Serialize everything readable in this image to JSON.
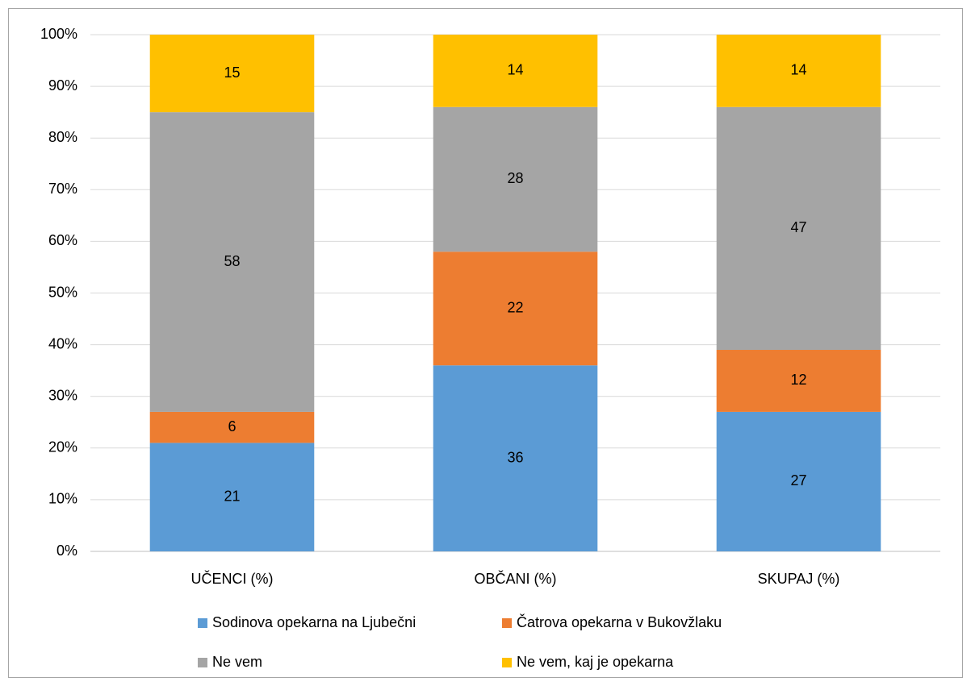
{
  "chart_data": {
    "type": "stacked_bar",
    "categories": [
      "UČENCI (%)",
      "OBČANI (%)",
      "SKUPAJ (%)"
    ],
    "series": [
      {
        "name": "Sodinova opekarna na Ljubečni",
        "color": "#5b9bd5",
        "values": [
          21,
          36,
          27
        ]
      },
      {
        "name": "Čatrova opekarna v Bukovžlaku",
        "color": "#ed7d31",
        "values": [
          6,
          22,
          12
        ]
      },
      {
        "name": "Ne vem",
        "color": "#a5a5a5",
        "values": [
          58,
          28,
          47
        ]
      },
      {
        "name": "Ne vem, kaj je opekarna",
        "color": "#ffc000",
        "values": [
          15,
          14,
          14
        ]
      }
    ],
    "ylim": [
      0,
      100
    ],
    "yticks": [
      {
        "value": 0,
        "label": "0%"
      },
      {
        "value": 10,
        "label": "10%"
      },
      {
        "value": 20,
        "label": "20%"
      },
      {
        "value": 30,
        "label": "30%"
      },
      {
        "value": 40,
        "label": "40%"
      },
      {
        "value": 50,
        "label": "50%"
      },
      {
        "value": 60,
        "label": "60%"
      },
      {
        "value": 70,
        "label": "70%"
      },
      {
        "value": 80,
        "label": "80%"
      },
      {
        "value": 90,
        "label": "90%"
      },
      {
        "value": 100,
        "label": "100%"
      }
    ],
    "grid": true,
    "legend": "bottom"
  }
}
